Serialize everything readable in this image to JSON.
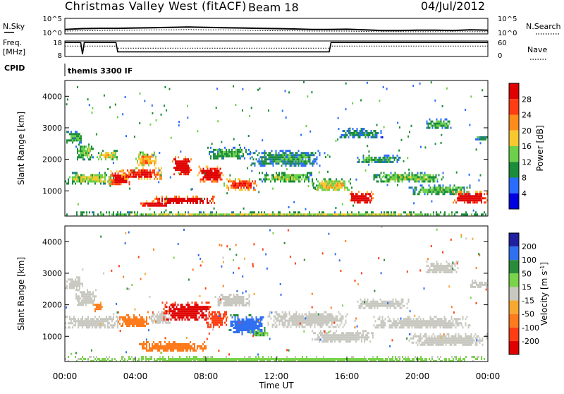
{
  "header": {
    "title": "Christmas Valley West (fitACF)",
    "beam": "Beam 18",
    "date": "04/Jul/2012"
  },
  "colors": {
    "power_scale": [
      "#0000e0",
      "#2a6cff",
      "#1a8c3a",
      "#6cd04a",
      "#f8c830",
      "#ff8c1a",
      "#ff3c12",
      "#e00000"
    ],
    "velocity_scale": [
      "#2020a0",
      "#3070f0",
      "#2a8c3a",
      "#7ad44a",
      "#c8c8c0",
      "#f8a830",
      "#ff7a1a",
      "#ff3c12",
      "#e00000"
    ],
    "ground_scatter": "#c8c8c0"
  },
  "chart_data": [
    {
      "type": "line",
      "name": "sky-search-noise",
      "left_labels": [
        "N.Sky"
      ],
      "right_labels": [
        "N.Search"
      ],
      "y_ticks_left": [
        "10^5",
        "10^0"
      ],
      "y_ticks_right": [
        "10^5",
        "10^0"
      ],
      "x": [
        0,
        1,
        2,
        3,
        4,
        5,
        6,
        7,
        8,
        9,
        10,
        11,
        12,
        13,
        14,
        15,
        16,
        17,
        18,
        19,
        20,
        21,
        22,
        23,
        24
      ],
      "series": [
        {
          "line": "solid",
          "values": [
            1.4,
            1.7,
            1.8,
            1.8,
            1.9,
            2.0,
            2.1,
            2.2,
            2.1,
            2.0,
            1.9,
            1.8,
            1.7,
            1.6,
            1.4,
            1.4,
            1.5,
            1.3,
            1.1,
            1.1,
            1.2,
            1.2,
            1.1,
            1.3,
            1.2
          ]
        },
        {
          "line": "dotted",
          "values": [
            0.9,
            1.0,
            1.1,
            1.2,
            1.2,
            1.3,
            1.3,
            1.4,
            1.3,
            1.3,
            1.2,
            1.1,
            1.0,
            1.0,
            0.9,
            0.9,
            0.9,
            0.8,
            0.7,
            0.7,
            0.7,
            0.7,
            0.7,
            0.7,
            0.7
          ]
        }
      ]
    },
    {
      "type": "line",
      "name": "frequency-nave",
      "left_labels": [
        "Freq.",
        "[MHz]"
      ],
      "right_labels": [
        "Nave"
      ],
      "y_ticks_left": [
        "18",
        "8"
      ],
      "y_ticks_right": [
        "60",
        "0"
      ],
      "cpid_label": "CPID",
      "cpid_text": "themis 3300 IF",
      "x": [
        0,
        0.9,
        1.0,
        1.1,
        2.9,
        3.0,
        15.0,
        15.1,
        24
      ],
      "series": [
        {
          "line": "solid",
          "axis": "left",
          "values": [
            17,
            17,
            9.5,
            17,
            17,
            11,
            11,
            17,
            17
          ]
        },
        {
          "line": "dotted",
          "axis": "right",
          "values": [
            40,
            40,
            10,
            40,
            40,
            32,
            32,
            40,
            40
          ]
        }
      ]
    },
    {
      "type": "heatmap",
      "name": "power",
      "ylabel": "Slant Range [km]",
      "yticks": [
        1000,
        2000,
        3000,
        4000
      ],
      "ylim": [
        200,
        4500
      ],
      "xlim": [
        0,
        24
      ],
      "colorbar_label": "Power [dB]",
      "colorbar_ticks": [
        4,
        8,
        12,
        16,
        20,
        24,
        28
      ],
      "clim": [
        0,
        32
      ],
      "bands": [
        {
          "t": [
            0.0,
            1.0
          ],
          "r": [
            2500,
            2900
          ],
          "value": 9
        },
        {
          "t": [
            0.6,
            1.6
          ],
          "r": [
            2000,
            2500
          ],
          "value": 11
        },
        {
          "t": [
            1.8,
            3.0
          ],
          "r": [
            2000,
            2300
          ],
          "value": 15
        },
        {
          "t": [
            0.0,
            2.8
          ],
          "r": [
            1250,
            1600
          ],
          "value": 12
        },
        {
          "t": [
            2.5,
            3.8
          ],
          "r": [
            1200,
            1650
          ],
          "value": 26
        },
        {
          "t": [
            3.2,
            5.5
          ],
          "r": [
            1400,
            1750
          ],
          "value": 24
        },
        {
          "t": [
            4.0,
            5.2
          ],
          "r": [
            1800,
            2250
          ],
          "value": 17
        },
        {
          "t": [
            6.0,
            7.2
          ],
          "r": [
            1500,
            2100
          ],
          "value": 28
        },
        {
          "t": [
            7.5,
            9.0
          ],
          "r": [
            1300,
            1800
          ],
          "value": 26
        },
        {
          "t": [
            9.0,
            11.0
          ],
          "r": [
            1050,
            1400
          ],
          "value": 22
        },
        {
          "t": [
            5.0,
            8.5
          ],
          "r": [
            600,
            850
          ],
          "value": 30
        },
        {
          "t": [
            4.2,
            6.0
          ],
          "r": [
            500,
            700
          ],
          "value": 26
        },
        {
          "t": [
            8.0,
            10.5
          ],
          "r": [
            2000,
            2400
          ],
          "value": 9
        },
        {
          "t": [
            10.5,
            14.5
          ],
          "r": [
            1800,
            2300
          ],
          "value": 8
        },
        {
          "t": [
            11.0,
            14.0
          ],
          "r": [
            1300,
            1600
          ],
          "value": 11
        },
        {
          "t": [
            14.0,
            16.3
          ],
          "r": [
            1000,
            1400
          ],
          "value": 14
        },
        {
          "t": [
            16.0,
            17.5
          ],
          "r": [
            600,
            1000
          ],
          "value": 27
        },
        {
          "t": [
            16.5,
            19.0
          ],
          "r": [
            1900,
            2150
          ],
          "value": 9
        },
        {
          "t": [
            17.5,
            21.5
          ],
          "r": [
            1300,
            1600
          ],
          "value": 11
        },
        {
          "t": [
            19.5,
            23.0
          ],
          "r": [
            900,
            1200
          ],
          "value": 10
        },
        {
          "t": [
            22.0,
            24.0
          ],
          "r": [
            600,
            1000
          ],
          "value": 27
        },
        {
          "t": [
            23.2,
            24.0
          ],
          "r": [
            2600,
            2800
          ],
          "value": 8
        },
        {
          "t": [
            15.5,
            18.0
          ],
          "r": [
            2700,
            3000
          ],
          "value": 8
        },
        {
          "t": [
            20.5,
            22.0
          ],
          "r": [
            3000,
            3300
          ],
          "value": 9
        },
        {
          "t": [
            0.0,
            24.0
          ],
          "r": [
            200,
            350
          ],
          "value": 13
        }
      ]
    },
    {
      "type": "heatmap",
      "name": "velocity",
      "ylabel": "Slant Range [km]",
      "xlabel": "Time UT",
      "yticks": [
        1000,
        2000,
        3000,
        4000
      ],
      "ylim": [
        200,
        4500
      ],
      "xlim": [
        0,
        24
      ],
      "xticks": [
        "00:00",
        "04:00",
        "08:00",
        "12:00",
        "16:00",
        "20:00",
        "00:00"
      ],
      "xtick_values": [
        0,
        4,
        8,
        12,
        16,
        20,
        24
      ],
      "colorbar_label": "Velocity [m s",
      "colorbar_label_exponent": "-1",
      "colorbar_label_close": "]",
      "colorbar_ticks": [
        200,
        100,
        50,
        15,
        -15,
        -50,
        -100,
        -200
      ],
      "bands": [
        {
          "t": [
            0.0,
            1.0
          ],
          "r": [
            2500,
            2900
          ],
          "value": 0,
          "ground": true
        },
        {
          "t": [
            0.6,
            1.8
          ],
          "r": [
            2000,
            2500
          ],
          "value": 0,
          "ground": true
        },
        {
          "t": [
            1.6,
            2.1
          ],
          "r": [
            1800,
            2100
          ],
          "value": -60
        },
        {
          "t": [
            0.0,
            3.0
          ],
          "r": [
            1250,
            1650
          ],
          "value": 0,
          "ground": true
        },
        {
          "t": [
            3.0,
            4.8
          ],
          "r": [
            1300,
            1700
          ],
          "value": -70
        },
        {
          "t": [
            4.8,
            6.0
          ],
          "r": [
            1400,
            1800
          ],
          "value": 0,
          "ground": true
        },
        {
          "t": [
            5.5,
            8.3
          ],
          "r": [
            1500,
            2100
          ],
          "value": -220
        },
        {
          "t": [
            8.0,
            9.2
          ],
          "r": [
            1300,
            1800
          ],
          "value": -150
        },
        {
          "t": [
            9.3,
            11.3
          ],
          "r": [
            1050,
            1700
          ],
          "value": 130
        },
        {
          "t": [
            10.5,
            11.5
          ],
          "r": [
            1000,
            1200
          ],
          "value": 40
        },
        {
          "t": [
            4.2,
            8.0
          ],
          "r": [
            550,
            850
          ],
          "value": -70
        },
        {
          "t": [
            8.5,
            10.5
          ],
          "r": [
            1950,
            2350
          ],
          "value": 0,
          "ground": true
        },
        {
          "t": [
            11.5,
            16.0
          ],
          "r": [
            1300,
            1800
          ],
          "value": 0,
          "ground": true
        },
        {
          "t": [
            14.0,
            17.5
          ],
          "r": [
            800,
            1200
          ],
          "value": 0,
          "ground": true
        },
        {
          "t": [
            16.5,
            19.5
          ],
          "r": [
            1900,
            2200
          ],
          "value": 0,
          "ground": true
        },
        {
          "t": [
            17.5,
            23.0
          ],
          "r": [
            1250,
            1650
          ],
          "value": 0,
          "ground": true
        },
        {
          "t": [
            19.5,
            24.0
          ],
          "r": [
            700,
            1100
          ],
          "value": 0,
          "ground": true
        },
        {
          "t": [
            20.5,
            22.3
          ],
          "r": [
            3000,
            3400
          ],
          "value": 0,
          "ground": true
        },
        {
          "t": [
            23.0,
            24.0
          ],
          "r": [
            2550,
            2800
          ],
          "value": 0,
          "ground": true
        },
        {
          "t": [
            0.0,
            24.0
          ],
          "r": [
            200,
            380
          ],
          "value": 20
        }
      ]
    }
  ]
}
